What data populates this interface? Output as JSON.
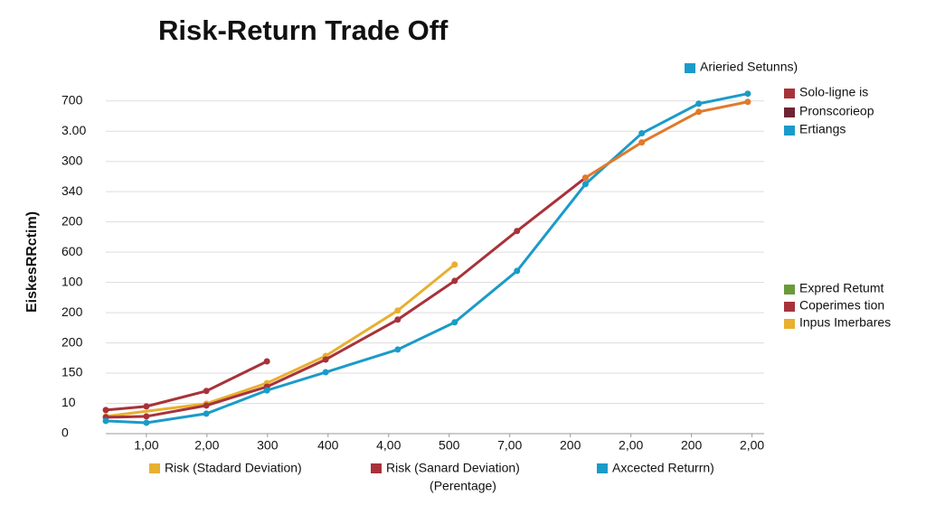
{
  "chart_data": {
    "type": "line",
    "title": "Risk-Return Trade Off",
    "y_axis_label": "EiskesRRctim)",
    "x_axis_label": "(Perentage)",
    "xlim": [
      0.33,
      11.2
    ],
    "ylim": [
      0,
      11.5
    ],
    "xticks": [
      {
        "value": 1,
        "label": "1,00"
      },
      {
        "value": 2,
        "label": "2,00"
      },
      {
        "value": 3,
        "label": "300"
      },
      {
        "value": 4,
        "label": "400"
      },
      {
        "value": 5,
        "label": "4,00"
      },
      {
        "value": 6,
        "label": "500"
      },
      {
        "value": 7,
        "label": "7,00"
      },
      {
        "value": 8,
        "label": "200"
      },
      {
        "value": 9,
        "label": "2,00"
      },
      {
        "value": 10,
        "label": "200"
      },
      {
        "value": 11,
        "label": "2,00"
      }
    ],
    "yticks": [
      {
        "value": 0,
        "label": "0"
      },
      {
        "value": 1,
        "label": "10"
      },
      {
        "value": 2,
        "label": "150"
      },
      {
        "value": 3,
        "label": "200"
      },
      {
        "value": 4,
        "label": "200"
      },
      {
        "value": 5,
        "label": "100"
      },
      {
        "value": 6,
        "label": "600"
      },
      {
        "value": 7,
        "label": "200"
      },
      {
        "value": 8,
        "label": "340"
      },
      {
        "value": 9,
        "label": "300"
      },
      {
        "value": 10,
        "label": "3.00"
      },
      {
        "value": 11,
        "label": "700"
      }
    ],
    "grid": true,
    "series": [
      {
        "name": "Risk (Stadard Deviation)",
        "color": "#e8b030",
        "x": [
          0.33,
          1.99,
          2.99,
          3.96,
          5.15,
          6.09
        ],
        "values": [
          0.57,
          0.99,
          1.67,
          2.57,
          4.07,
          5.59
        ]
      },
      {
        "name": "Risk (Sanard Deviation)",
        "color": "#a8323a",
        "x": [
          0.33,
          1,
          1.99,
          2.99,
          3.96,
          5.15,
          6.09,
          7.12,
          8.25
        ],
        "values": [
          0.54,
          0.57,
          0.93,
          1.55,
          2.45,
          3.77,
          5.05,
          6.7,
          8.46
        ]
      },
      {
        "name": "Axcected Returrn)",
        "color": "#1a9bc9",
        "x": [
          0.33,
          1,
          1.99,
          2.99,
          3.96,
          5.15,
          6.09,
          7.12,
          8.25,
          9.18,
          10.12,
          10.93
        ],
        "values": [
          0.42,
          0.36,
          0.66,
          1.43,
          2.03,
          2.78,
          3.68,
          5.38,
          8.25,
          9.93,
          10.91,
          11.24
        ]
      },
      {
        "color": "#a8323a",
        "x": [
          0.33,
          1,
          1.99,
          2.99
        ],
        "values": [
          0.78,
          0.9,
          1.41,
          2.39
        ]
      },
      {
        "color": "#e07a2b",
        "x": [
          8.25,
          9.18,
          10.12,
          10.93
        ],
        "values": [
          8.46,
          9.63,
          10.64,
          10.97
        ]
      }
    ],
    "legend_top": [
      {
        "label": "Arieried Setunns)",
        "color": "#1a9bc9"
      }
    ],
    "legend_right_upper": [
      {
        "label": "Solo-ligne is",
        "color": "#a8323a"
      },
      {
        "label": "Pronscorieop",
        "color": "#6e2433"
      },
      {
        "label": "Ertiangs",
        "color": "#1a9bc9"
      }
    ],
    "legend_right_lower": [
      {
        "label": "Expred Retumt",
        "color": "#6a9a3a"
      },
      {
        "label": "Coperimes tion",
        "color": "#a8323a"
      },
      {
        "label": "Inpus Imerbares",
        "color": "#e8b030"
      }
    ]
  }
}
